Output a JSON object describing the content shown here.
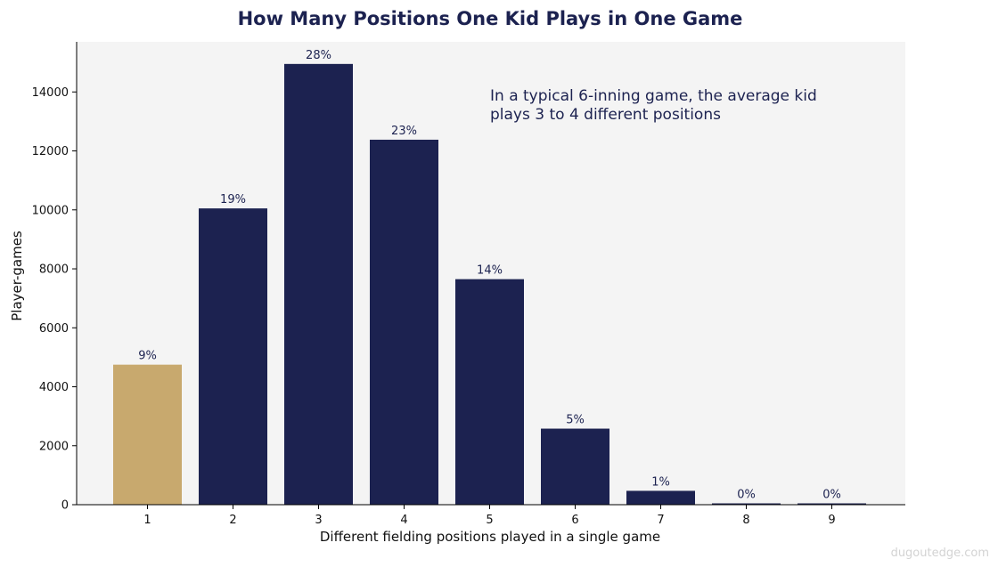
{
  "chart_data": {
    "type": "bar",
    "title": "How Many Positions One Kid Plays in One Game",
    "xlabel": "Different fielding positions played in a single game",
    "ylabel": "Player-games",
    "categories": [
      "1",
      "2",
      "3",
      "4",
      "5",
      "6",
      "7",
      "8",
      "9"
    ],
    "values": [
      4750,
      10050,
      14950,
      12380,
      7650,
      2580,
      470,
      40,
      20
    ],
    "data_labels": [
      "9%",
      "19%",
      "28%",
      "23%",
      "14%",
      "5%",
      "1%",
      "0%",
      "0%"
    ],
    "ylim": [
      0,
      15700
    ],
    "yticks": [
      0,
      2000,
      4000,
      6000,
      8000,
      10000,
      12000,
      14000
    ],
    "annotation": [
      "In a typical 6-inning game, the average kid",
      "plays 3 to 4 different positions"
    ],
    "grid": false,
    "colors": {
      "highlight": "#c8a96e",
      "default": "#1c2250",
      "plot_background": "#f4f4f4",
      "text_accent": "#1c2250"
    },
    "highlight_index": 0
  },
  "watermark": "dugoutedge.com"
}
